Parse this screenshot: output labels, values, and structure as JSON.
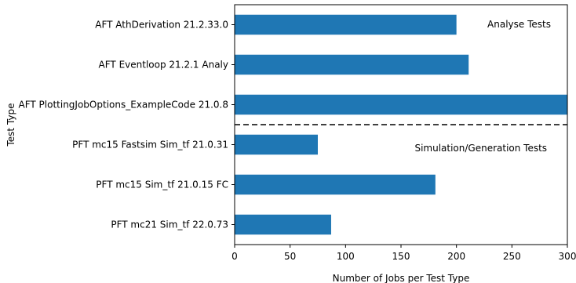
{
  "chart_data": {
    "type": "bar",
    "orientation": "horizontal",
    "categories": [
      "AFT AthDerivation 21.2.33.0",
      "AFT Eventloop 21.2.1 Analy",
      "AFT PlottingJobOptions_ExampleCode 21.0.8",
      "PFT mc15 Fastsim Sim_tf 21.0.31",
      "PFT mc15 Sim_tf 21.0.15 FC",
      "PFT mc21 Sim_tf 22.0.73"
    ],
    "values": [
      200,
      211,
      304,
      75,
      181,
      87
    ],
    "xlabel": "Number of Jobs per Test Type",
    "ylabel": "Test Type",
    "xlim": [
      0,
      300
    ],
    "xticks": [
      0,
      50,
      100,
      150,
      200,
      250,
      300
    ],
    "bar_color": "#1f77b4",
    "separator": "dashed line between AFT and PFT groups",
    "annotations": [
      {
        "text": "Analyse Tests",
        "group": "AFT",
        "placement": "top-right"
      },
      {
        "text": "Simulation/Generation Tests",
        "group": "PFT",
        "placement": "right"
      }
    ],
    "grid": false,
    "legend": "none"
  }
}
